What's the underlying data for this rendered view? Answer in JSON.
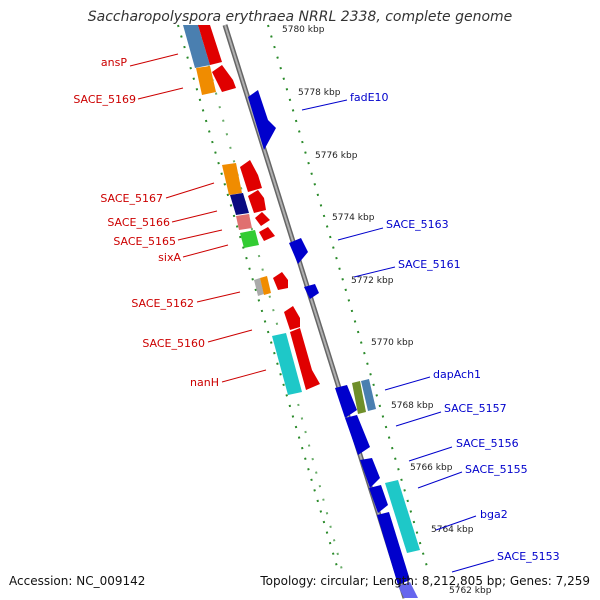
{
  "title": "Saccharopolyspora erythraea NRRL 2338, complete genome",
  "footer": {
    "accession": "Accession: NC_009142",
    "summary": "Topology: circular; Length: 8,212,805 bp; Genes: 7,259"
  },
  "colors": {
    "forward_label": "#cc0000",
    "reverse_label": "#0000cc",
    "backbone": "#8a8a8a",
    "dots": "#2a8a2a"
  },
  "ticks": [
    "5780 kbp",
    "5778 kbp",
    "5776 kbp",
    "5774 kbp",
    "5772 kbp",
    "5770 kbp",
    "5768 kbp",
    "5766 kbp",
    "5764 kbp",
    "5762 kbp"
  ],
  "labels_left": [
    "ansP",
    "SACE_5169",
    "SACE_5167",
    "SACE_5166",
    "SACE_5165",
    "sixA",
    "SACE_5162",
    "SACE_5160",
    "nanH"
  ],
  "labels_right": [
    "fadE10",
    "SACE_5163",
    "SACE_5161",
    "dapAch1",
    "SACE_5157",
    "SACE_5156",
    "SACE_5155",
    "bga2",
    "SACE_5153"
  ]
}
